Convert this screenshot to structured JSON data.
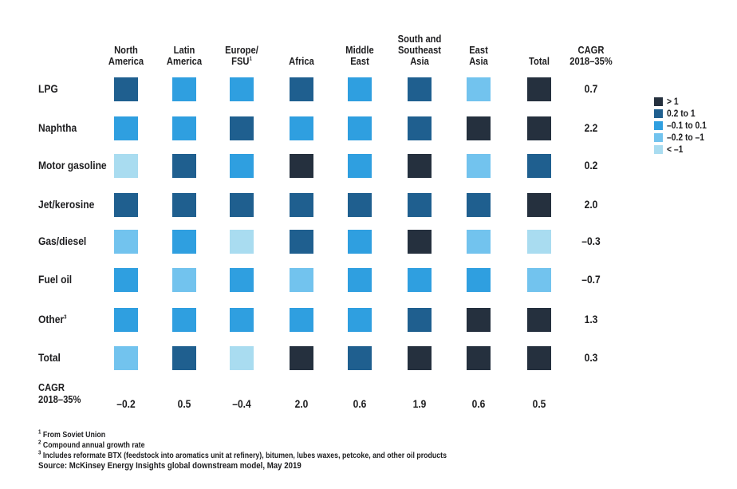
{
  "chart_data": {
    "type": "heatmap",
    "columns": [
      {
        "line1": "North",
        "line2": "America"
      },
      {
        "line1": "Latin",
        "line2": "America"
      },
      {
        "line1": "Europe/",
        "line2": "FSU",
        "sup": "1"
      },
      {
        "line1": "",
        "line2": "Africa"
      },
      {
        "line1": "Middle",
        "line2": "East"
      },
      {
        "line1": "South and",
        "line2": "Southeast",
        "line3": "Asia"
      },
      {
        "line1": "East",
        "line2": "Asia"
      },
      {
        "line1": "",
        "line2": "Total"
      }
    ],
    "cagr_column_header": {
      "line1": "CAGR",
      "line2": "2018–35%"
    },
    "rows": [
      {
        "label": "LPG",
        "levels": [
          1,
          2,
          2,
          1,
          2,
          1,
          3,
          0
        ],
        "cagr": "0.7"
      },
      {
        "label": "Naphtha",
        "levels": [
          2,
          2,
          1,
          2,
          2,
          1,
          0,
          0
        ],
        "cagr": "2.2"
      },
      {
        "label": "Motor gasoline",
        "levels": [
          4,
          1,
          2,
          0,
          2,
          0,
          3,
          1
        ],
        "cagr": "0.2"
      },
      {
        "label": "Jet/kerosine",
        "levels": [
          1,
          1,
          1,
          1,
          1,
          1,
          1,
          0
        ],
        "cagr": "2.0"
      },
      {
        "label": "Gas/diesel",
        "levels": [
          3,
          2,
          4,
          1,
          2,
          0,
          3,
          4
        ],
        "cagr": "–0.3"
      },
      {
        "label": "Fuel oil",
        "levels": [
          2,
          3,
          2,
          3,
          2,
          2,
          2,
          3
        ],
        "cagr": "–0.7"
      },
      {
        "label": "Other",
        "sup": "3",
        "levels": [
          2,
          2,
          2,
          2,
          2,
          1,
          0,
          0
        ],
        "cagr": "1.3"
      },
      {
        "label": "Total",
        "levels": [
          3,
          1,
          4,
          0,
          1,
          0,
          0,
          0
        ],
        "cagr": "0.3"
      }
    ],
    "cagr_row_label": {
      "line1": "CAGR",
      "line2": "2018–35%"
    },
    "cagr_row_values": [
      "–0.2",
      "0.5",
      "–0.4",
      "2.0",
      "0.6",
      "1.9",
      "0.6",
      "0.5"
    ],
    "legend": [
      {
        "label": "> 1",
        "color": "#25303e"
      },
      {
        "label": "0.2 to 1",
        "color": "#1f5f8f"
      },
      {
        "label": "–0.1 to 0.1",
        "color": "#2f9fe0"
      },
      {
        "label": "–0.2 to –1",
        "color": "#72c3ee"
      },
      {
        "label": "< –1",
        "color": "#a9dcf0"
      }
    ],
    "legend_placement": "right"
  },
  "footnotes": [
    {
      "sup": "1",
      "text": "From Soviet Union"
    },
    {
      "sup": "2",
      "text": "Compound annual growth rate"
    },
    {
      "sup": "3",
      "text": "Includes reformate BTX (feedstock into aromatics unit at refinery), bitumen, lubes waxes, petcoke, and other oil products"
    }
  ],
  "source": "Source: McKinsey Energy Insights global downstream model, May 2019"
}
